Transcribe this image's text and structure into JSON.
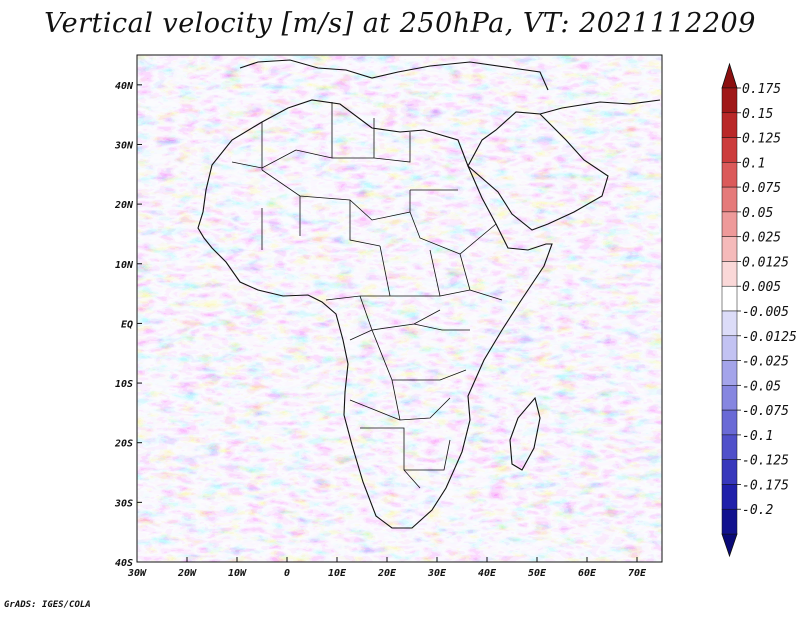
{
  "title": "Vertical velocity [m/s] at 250hPa, VT: 2021112209",
  "footer": "GrADS: IGES/COLA",
  "map": {
    "lon_range": [
      -30,
      75
    ],
    "lat_range": [
      -40,
      45
    ],
    "lon_ticks": [
      {
        "value": -30,
        "label": "30W"
      },
      {
        "value": -20,
        "label": "20W"
      },
      {
        "value": -10,
        "label": "10W"
      },
      {
        "value": 0,
        "label": "0"
      },
      {
        "value": 10,
        "label": "10E"
      },
      {
        "value": 20,
        "label": "20E"
      },
      {
        "value": 30,
        "label": "30E"
      },
      {
        "value": 40,
        "label": "40E"
      },
      {
        "value": 50,
        "label": "50E"
      },
      {
        "value": 60,
        "label": "60E"
      },
      {
        "value": 70,
        "label": "70E"
      }
    ],
    "lat_ticks": [
      {
        "value": 40,
        "label": "40N"
      },
      {
        "value": 30,
        "label": "30N"
      },
      {
        "value": 20,
        "label": "20N"
      },
      {
        "value": 10,
        "label": "10N"
      },
      {
        "value": 0,
        "label": "EQ"
      },
      {
        "value": -10,
        "label": "10S"
      },
      {
        "value": -20,
        "label": "20S"
      },
      {
        "value": -30,
        "label": "30S"
      },
      {
        "value": -40,
        "label": "40S"
      }
    ]
  },
  "colorbar": {
    "levels": [
      {
        "label": "0.175",
        "color": "#a01818"
      },
      {
        "label": "0.15",
        "color": "#b92828"
      },
      {
        "label": "0.125",
        "color": "#cc3c3c"
      },
      {
        "label": "0.1",
        "color": "#db5a5a"
      },
      {
        "label": "0.075",
        "color": "#e57a7a"
      },
      {
        "label": "0.05",
        "color": "#ee9a9a"
      },
      {
        "label": "0.025",
        "color": "#f5baba"
      },
      {
        "label": "0.0125",
        "color": "#fad8d8"
      },
      {
        "label": "0.005",
        "color": "#ffffff"
      },
      {
        "label": "-0.005",
        "color": "#dcdcf8"
      },
      {
        "label": "-0.0125",
        "color": "#c2c2f2"
      },
      {
        "label": "-0.025",
        "color": "#a4a4ea"
      },
      {
        "label": "-0.05",
        "color": "#8686e0"
      },
      {
        "label": "-0.075",
        "color": "#6a6ad6"
      },
      {
        "label": "-0.1",
        "color": "#5050ca"
      },
      {
        "label": "-0.125",
        "color": "#3838bc"
      },
      {
        "label": "-0.175",
        "color": "#2020aa"
      },
      {
        "label": "-0.2",
        "color": "#12128e"
      }
    ],
    "top_arrow_color": "#8c1010",
    "bottom_arrow_color": "#0a0a78"
  }
}
